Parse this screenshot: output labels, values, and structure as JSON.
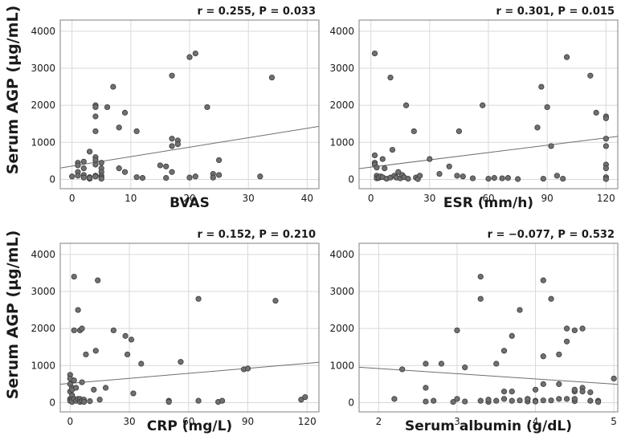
{
  "figure": {
    "ylabel_top": "Serum AGP (µg/mL)",
    "ylabel_bottom": "Serum AGP (µg/mL)"
  },
  "colors": {
    "point": "#707070",
    "point_edge": "#3a3a3a",
    "fit_line": "#6e6e6e",
    "grid": "#d9d9d9",
    "frame": "#7f7f7f"
  },
  "chart_data": [
    {
      "id": "bvas",
      "type": "scatter",
      "title": "r = 0.255, P = 0.033",
      "xlabel": "BVAS",
      "ylabel": "Serum AGP (µg/mL)",
      "xlim": [
        -2,
        42
      ],
      "ylim": [
        -250,
        4300
      ],
      "xticks": [
        0,
        10,
        20,
        30,
        40
      ],
      "yticks": [
        0,
        1000,
        2000,
        3000,
        4000
      ],
      "fit": {
        "intercept": 360,
        "slope": 25.5
      },
      "x": [
        0,
        1,
        1,
        1,
        1,
        2,
        2,
        2,
        2,
        3,
        3,
        3,
        3,
        3,
        4,
        4,
        4,
        4,
        4,
        4,
        4,
        4,
        4,
        5,
        5,
        5,
        5,
        5,
        5,
        6,
        7,
        8,
        8,
        9,
        9,
        11,
        11,
        12,
        15,
        16,
        16,
        17,
        17,
        17,
        17,
        18,
        18,
        20,
        20,
        21,
        21,
        23,
        24,
        24,
        25,
        25,
        32,
        34
      ],
      "y": [
        80,
        450,
        380,
        200,
        100,
        480,
        300,
        120,
        50,
        60,
        750,
        20,
        30,
        40,
        2000,
        1950,
        1700,
        1300,
        600,
        520,
        400,
        100,
        80,
        450,
        300,
        200,
        100,
        50,
        20,
        1950,
        2500,
        1400,
        300,
        1800,
        200,
        1300,
        60,
        40,
        380,
        350,
        40,
        2800,
        1100,
        900,
        200,
        1050,
        950,
        3300,
        50,
        3400,
        80,
        1950,
        150,
        50,
        520,
        120,
        80,
        2750
      ]
    },
    {
      "id": "esr",
      "type": "scatter",
      "title": "r = 0.301, P = 0.015",
      "xlabel": "ESR (mm/h)",
      "ylabel": "Serum AGP (µg/mL)",
      "xlim": [
        -6,
        126
      ],
      "ylim": [
        -250,
        4300
      ],
      "xticks": [
        0,
        30,
        60,
        90,
        120
      ],
      "yticks": [
        0,
        1000,
        2000,
        3000,
        4000
      ],
      "fit": {
        "intercept": 330,
        "slope": 6.6
      },
      "x": [
        2,
        2,
        2,
        2,
        3,
        3,
        3,
        4,
        4,
        5,
        6,
        6,
        7,
        8,
        10,
        10,
        11,
        12,
        13,
        14,
        15,
        16,
        17,
        18,
        19,
        22,
        23,
        24,
        25,
        30,
        35,
        40,
        44,
        45,
        47,
        52,
        57,
        60,
        63,
        67,
        70,
        75,
        85,
        87,
        88,
        90,
        92,
        95,
        98,
        100,
        112,
        115,
        120,
        120,
        120,
        120,
        120,
        120,
        120,
        120
      ],
      "y": [
        3400,
        650,
        450,
        400,
        320,
        100,
        30,
        40,
        50,
        80,
        550,
        60,
        300,
        20,
        50,
        2750,
        800,
        100,
        50,
        200,
        30,
        120,
        60,
        2000,
        20,
        1300,
        50,
        10,
        100,
        550,
        150,
        350,
        100,
        1300,
        80,
        30,
        2000,
        20,
        40,
        30,
        40,
        10,
        1400,
        2500,
        20,
        1950,
        900,
        100,
        20,
        3300,
        2800,
        1800,
        1700,
        1100,
        900,
        400,
        300,
        60,
        10,
        1650
      ]
    },
    {
      "id": "crp",
      "type": "scatter",
      "title": "r = 0.152, P = 0.210",
      "xlabel": "CRP (mg/L)",
      "ylabel": "Serum AGP (µg/mL)",
      "xlim": [
        -5,
        126
      ],
      "ylim": [
        -250,
        4300
      ],
      "xticks": [
        0,
        30,
        60,
        90,
        120
      ],
      "yticks": [
        0,
        1000,
        2000,
        3000,
        4000
      ],
      "fit": {
        "intercept": 520,
        "slope": 4.5
      },
      "x": [
        0,
        0,
        0,
        0,
        0,
        0,
        1,
        1,
        1,
        1,
        1,
        2,
        2,
        2,
        2,
        3,
        3,
        4,
        4,
        5,
        5,
        5,
        6,
        6,
        6,
        7,
        7,
        8,
        10,
        12,
        13,
        14,
        15,
        18,
        22,
        28,
        29,
        31,
        32,
        36,
        50,
        50,
        56,
        65,
        65,
        75,
        77,
        88,
        90,
        104,
        117,
        119
      ],
      "y": [
        750,
        650,
        500,
        300,
        100,
        50,
        400,
        350,
        200,
        80,
        20,
        3400,
        1950,
        600,
        100,
        400,
        50,
        2500,
        100,
        1950,
        100,
        20,
        2000,
        550,
        50,
        80,
        20,
        1300,
        40,
        350,
        1400,
        3300,
        80,
        400,
        1950,
        1800,
        1300,
        1700,
        250,
        1050,
        50,
        20,
        1100,
        2800,
        50,
        20,
        50,
        900,
        920,
        2750,
        80,
        150
      ]
    },
    {
      "id": "albumin",
      "type": "scatter",
      "title": "r = −0.077, P = 0.532",
      "xlabel": "Serum albumin (g/dL)",
      "ylabel": "Serum AGP (µg/mL)",
      "xlim": [
        1.75,
        5.05
      ],
      "ylim": [
        -250,
        4300
      ],
      "xticks": [
        2,
        3,
        4,
        5
      ],
      "yticks": [
        0,
        1000,
        2000,
        3000,
        4000
      ],
      "fit": {
        "intercept": 1200,
        "slope": -140
      },
      "x": [
        2.2,
        2.3,
        2.6,
        2.6,
        2.6,
        2.7,
        2.8,
        2.95,
        3.0,
        3.0,
        3.1,
        3.1,
        3.3,
        3.3,
        3.3,
        3.4,
        3.4,
        3.5,
        3.5,
        3.6,
        3.6,
        3.6,
        3.7,
        3.7,
        3.7,
        3.8,
        3.8,
        3.9,
        3.9,
        3.9,
        4.0,
        4.0,
        4.0,
        4.1,
        4.1,
        4.1,
        4.1,
        4.2,
        4.2,
        4.3,
        4.3,
        4.3,
        4.4,
        4.4,
        4.4,
        4.5,
        4.5,
        4.5,
        4.5,
        4.5,
        4.6,
        4.6,
        4.6,
        4.7,
        4.7,
        4.8,
        4.8,
        5.0
      ],
      "y": [
        100,
        900,
        1050,
        400,
        30,
        50,
        1050,
        20,
        1950,
        100,
        950,
        30,
        3400,
        2800,
        50,
        20,
        80,
        1050,
        50,
        1400,
        300,
        100,
        50,
        300,
        1800,
        2500,
        60,
        30,
        100,
        100,
        50,
        30,
        350,
        3300,
        1250,
        500,
        60,
        2800,
        60,
        1300,
        100,
        500,
        1650,
        100,
        2000,
        1950,
        300,
        40,
        100,
        350,
        2000,
        400,
        300,
        50,
        280,
        50,
        20,
        650
      ]
    }
  ]
}
